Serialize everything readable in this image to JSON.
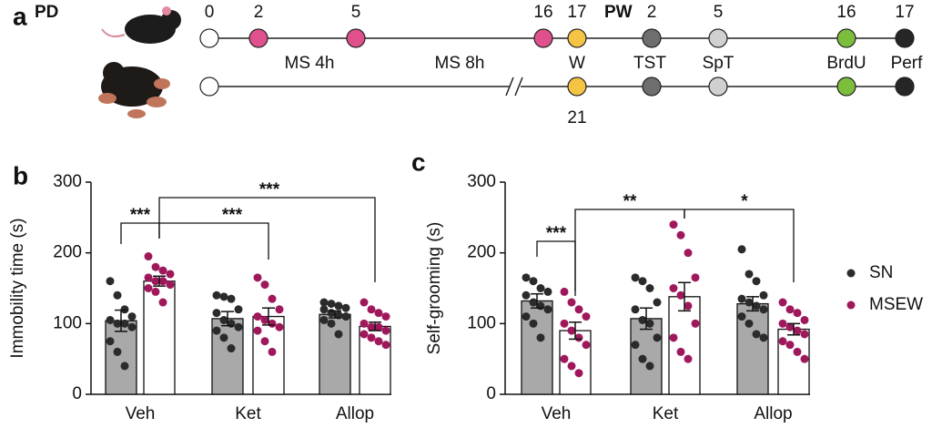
{
  "panel_labels": [
    "a",
    "b",
    "c"
  ],
  "timeline": {
    "pd": "PD",
    "pw": "PW",
    "pd_days": [
      "0",
      "2",
      "5",
      "16",
      "17"
    ],
    "pw_days": [
      "2",
      "5",
      "16",
      "17"
    ],
    "events": [
      "MS 4h",
      "MS 8h",
      "W",
      "TST",
      "SpT",
      "BrdU",
      "Perf"
    ],
    "weaning_day": "21"
  },
  "chart_data": [
    {
      "type": "bar",
      "y_label": "Immobility time (s)",
      "categories": [
        "Veh",
        "Ket",
        "Allop"
      ],
      "ylim": [
        0,
        300
      ],
      "yticks": [
        0,
        100,
        200,
        300
      ],
      "annotations": [
        "***",
        "***",
        "***"
      ],
      "series": [
        {
          "name": "SN",
          "color": "#a9a9a9",
          "dot_color": "#2b2b2b",
          "values": [
            104,
            107,
            113
          ],
          "errors": [
            15,
            10,
            5
          ],
          "points": [
            [
              160,
              140,
              120,
              110,
              105,
              100,
              100,
              95,
              75,
              60,
              40
            ],
            [
              140,
              138,
              135,
              120,
              115,
              105,
              100,
              95,
              90,
              80,
              65
            ],
            [
              130,
              128,
              125,
              122,
              120,
              115,
              112,
              110,
              105,
              100,
              85
            ]
          ]
        },
        {
          "name": "MSEW",
          "color": "#ffffff",
          "dot_color": "#a0185c",
          "values": [
            160,
            110,
            96
          ],
          "errors": [
            7,
            12,
            6
          ],
          "points": [
            [
              195,
              180,
              175,
              170,
              165,
              160,
              160,
              155,
              150,
              145,
              130
            ],
            [
              165,
              155,
              135,
              120,
              110,
              105,
              100,
              95,
              90,
              75,
              60
            ],
            [
              130,
              120,
              115,
              110,
              100,
              95,
              95,
              90,
              85,
              80,
              75,
              70
            ]
          ]
        }
      ]
    },
    {
      "type": "bar",
      "y_label": "Self-grooming (s)",
      "categories": [
        "Veh",
        "Ket",
        "Allop"
      ],
      "ylim": [
        0,
        300
      ],
      "yticks": [
        0,
        100,
        200,
        300
      ],
      "annotations": [
        "***",
        "**",
        "*"
      ],
      "series": [
        {
          "name": "SN",
          "color": "#a9a9a9",
          "dot_color": "#2b2b2b",
          "values": [
            132,
            107,
            128
          ],
          "errors": [
            10,
            15,
            10
          ],
          "points": [
            [
              165,
              160,
              150,
              145,
              140,
              130,
              125,
              120,
              110,
              100,
              80
            ],
            [
              165,
              160,
              150,
              130,
              120,
              105,
              100,
              80,
              70,
              50,
              40
            ],
            [
              205,
              170,
              160,
              140,
              135,
              130,
              125,
              120,
              110,
              100,
              85,
              80
            ]
          ]
        },
        {
          "name": "MSEW",
          "color": "#ffffff",
          "dot_color": "#a0185c",
          "values": [
            90,
            138,
            92
          ],
          "errors": [
            12,
            20,
            8
          ],
          "points": [
            [
              145,
              130,
              120,
              110,
              100,
              90,
              80,
              70,
              50,
              40,
              30
            ],
            [
              240,
              225,
              200,
              165,
              150,
              140,
              125,
              100,
              80,
              60,
              50
            ],
            [
              130,
              120,
              115,
              105,
              100,
              95,
              90,
              85,
              75,
              70,
              60,
              50
            ]
          ]
        }
      ]
    }
  ]
}
